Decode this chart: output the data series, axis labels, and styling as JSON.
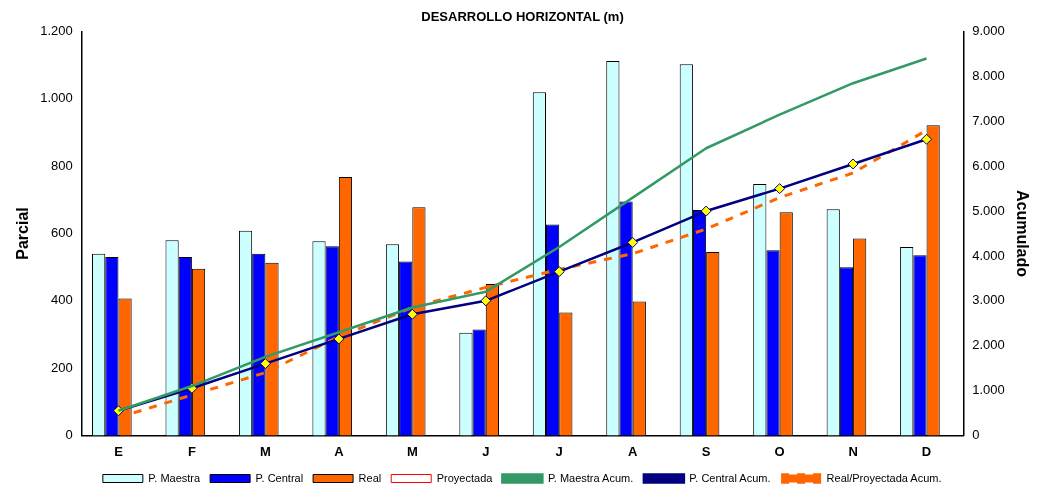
{
  "chart_data": {
    "type": "bar",
    "title": "DESARROLLO HORIZONTAL (m)",
    "ylabel": "Parcial",
    "y2label": "Acumulado",
    "categories": [
      "E",
      "F",
      "M",
      "A",
      "M",
      "J",
      "J",
      "A",
      "S",
      "O",
      "N",
      "D"
    ],
    "series": [
      {
        "name": "P. Maestra",
        "color": "#ccffff",
        "values": [
          540,
          580,
          608,
          577,
          568,
          305,
          1020,
          1113,
          1103,
          747,
          672,
          560
        ]
      },
      {
        "name": "P. Central",
        "color": "#0000ff",
        "values": [
          530,
          530,
          540,
          562,
          517,
          315,
          627,
          695,
          670,
          550,
          500,
          535
        ]
      },
      {
        "name": "Real",
        "color": "#ff6600",
        "values": [
          407,
          495,
          513,
          768,
          678,
          450,
          365,
          398,
          545,
          663,
          585,
          922
        ]
      },
      {
        "name": "Proyectada",
        "color": "#ff0000",
        "values": [
          null,
          null,
          null,
          null,
          null,
          null,
          null,
          null,
          null,
          null,
          null,
          null
        ]
      },
      {
        "name": "P. Maestra Acum.",
        "type": "line",
        "axis": "y2",
        "color": "#339966",
        "marker": "none",
        "line_style": "solid",
        "values": [
          550,
          1100,
          1750,
          2300,
          2850,
          3200,
          4200,
          5300,
          6400,
          7150,
          7850,
          8400
        ]
      },
      {
        "name": "P. Central Acum.",
        "type": "line",
        "axis": "y2",
        "color": "#000080",
        "marker": "diamond",
        "line_style": "solid",
        "values": [
          550,
          1050,
          1600,
          2150,
          2700,
          3000,
          3650,
          4300,
          5000,
          5500,
          6050,
          6600
        ]
      },
      {
        "name": "Real/Proyectada Acum.",
        "type": "line",
        "axis": "y2",
        "color": "#ff6600",
        "marker": "none",
        "line_style": "dashed",
        "values": [
          400,
          900,
          1400,
          2200,
          2850,
          3300,
          3700,
          4050,
          4600,
          5300,
          5850,
          6800
        ]
      }
    ],
    "ylim": [
      0,
      1200
    ],
    "yticks": [
      0,
      200,
      400,
      600,
      800,
      {
        "value": 1000,
        "label": "1.000"
      },
      {
        "value": 1200,
        "label": "1.200"
      }
    ],
    "y2lim": [
      0,
      9000
    ],
    "y2ticks": [
      0,
      {
        "value": 1000,
        "label": "1.000"
      },
      {
        "value": 2000,
        "label": "2.000"
      },
      {
        "value": 3000,
        "label": "3.000"
      },
      {
        "value": 4000,
        "label": "4.000"
      },
      {
        "value": 5000,
        "label": "5.000"
      },
      {
        "value": 6000,
        "label": "6.000"
      },
      {
        "value": 7000,
        "label": "7.000"
      },
      {
        "value": 8000,
        "label": "8.000"
      },
      {
        "value": 9000,
        "label": "9.000"
      }
    ],
    "grid": false,
    "legend": "bottom"
  }
}
